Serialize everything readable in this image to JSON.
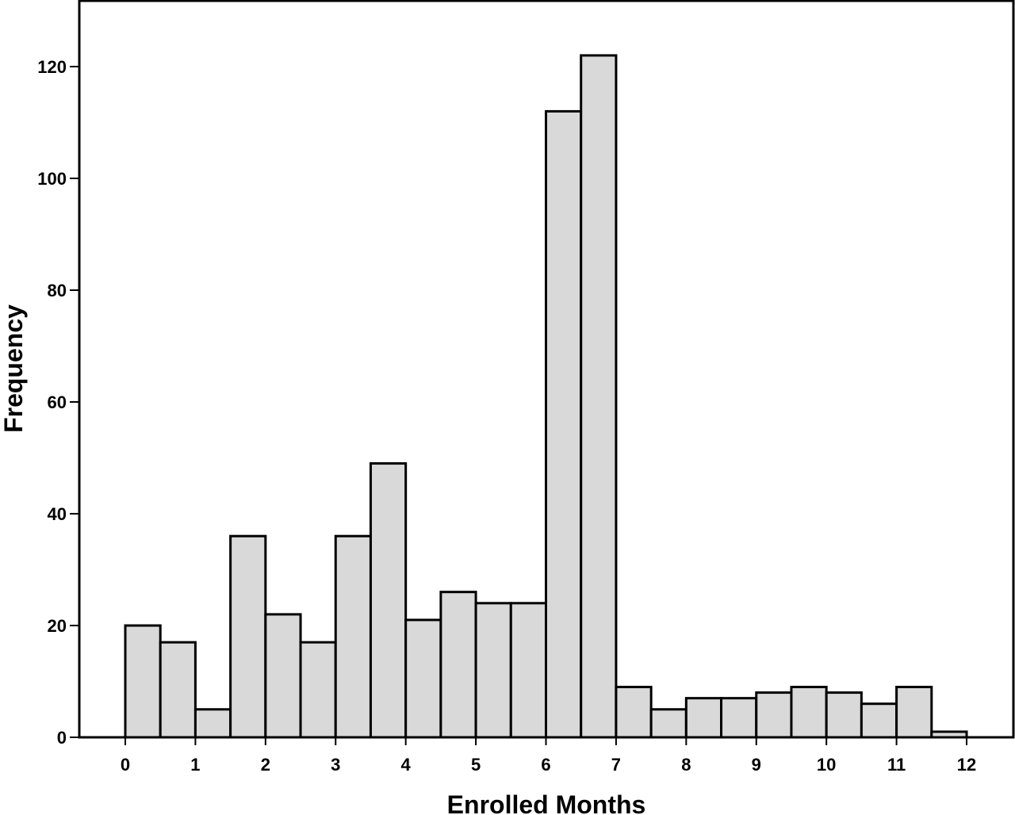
{
  "chart_data": {
    "type": "bar",
    "histogram": true,
    "bin_width": 0.5,
    "bin_starts": [
      0,
      0.5,
      1,
      1.5,
      2,
      2.5,
      3,
      3.5,
      4,
      4.5,
      5,
      5.5,
      6,
      6.5,
      7,
      7.5,
      8,
      8.5,
      9,
      9.5,
      10,
      10.5,
      11,
      11.5
    ],
    "values": [
      20,
      17,
      5,
      36,
      22,
      17,
      36,
      49,
      21,
      26,
      24,
      24,
      112,
      122,
      9,
      5,
      7,
      7,
      8,
      9,
      8,
      6,
      9,
      1
    ],
    "xlabel": "Enrolled Months",
    "ylabel": "Frequency",
    "xlim": [
      0,
      12
    ],
    "ylim": [
      0,
      130
    ],
    "x_ticks": [
      "0",
      "1",
      "2",
      "3",
      "4",
      "5",
      "6",
      "7",
      "8",
      "9",
      "10",
      "11",
      "12"
    ],
    "y_ticks": [
      "0",
      "20",
      "40",
      "60",
      "80",
      "100",
      "120"
    ],
    "grid": false,
    "bar_color": "#d9d9d9"
  }
}
